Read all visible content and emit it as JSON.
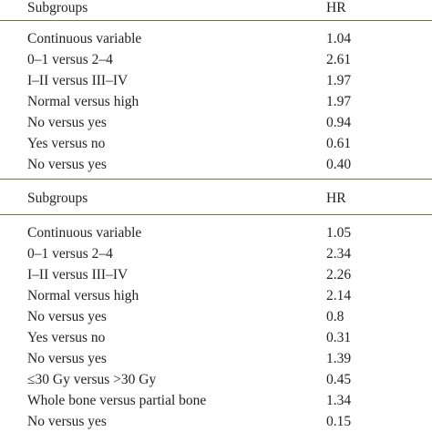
{
  "tables": [
    {
      "header": {
        "subgroups": "Subgroups",
        "hr": "HR"
      },
      "rows": [
        {
          "subgroup": "Continuous variable",
          "hr": "1.04"
        },
        {
          "subgroup": "0–1 versus 2–4",
          "hr": "2.61"
        },
        {
          "subgroup": "I–II versus III–IV",
          "hr": "1.97"
        },
        {
          "subgroup": "Normal versus high",
          "hr": "1.97"
        },
        {
          "subgroup": "No versus yes",
          "hr": "0.94"
        },
        {
          "subgroup": "Yes versus no",
          "hr": "0.61"
        },
        {
          "subgroup": "No versus yes",
          "hr": "0.40"
        }
      ]
    },
    {
      "header": {
        "subgroups": "Subgroups",
        "hr": "HR"
      },
      "rows": [
        {
          "subgroup": "Continuous variable",
          "hr": "1.05"
        },
        {
          "subgroup": "0–1 versus 2–4",
          "hr": "2.34"
        },
        {
          "subgroup": "I–II versus III–IV",
          "hr": "2.26"
        },
        {
          "subgroup": "Normal versus high",
          "hr": "2.14"
        },
        {
          "subgroup": "No versus yes",
          "hr": "0.8"
        },
        {
          "subgroup": "Yes versus no",
          "hr": "0.31"
        },
        {
          "subgroup": "No versus yes",
          "hr": "1.39"
        },
        {
          "subgroup": "≤30 Gy versus >30 Gy",
          "hr": "0.45"
        },
        {
          "subgroup": "Whole bone versus partial bone",
          "hr": "1.34"
        },
        {
          "subgroup": "No versus yes",
          "hr": "0.15"
        }
      ]
    }
  ]
}
